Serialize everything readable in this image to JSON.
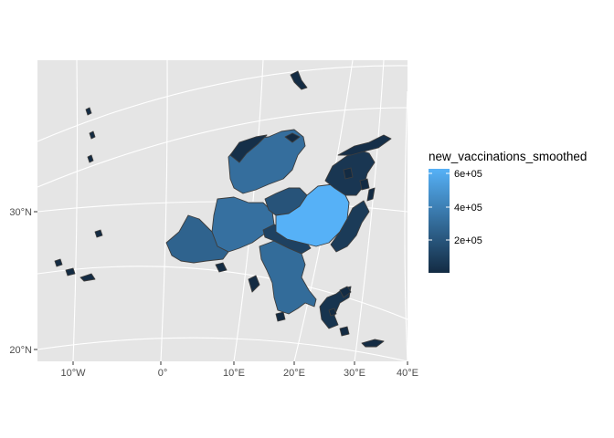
{
  "map": {
    "x_axis_labels": [
      "10°W",
      "0°",
      "10°E",
      "20°E",
      "30°E",
      "40°E"
    ],
    "y_axis_labels": [
      "30°N",
      "20°N"
    ],
    "panel_background": "#e5e5e5",
    "gridline_color": "#ffffff",
    "border_color": "#3d3d3d"
  },
  "legend": {
    "title": "new_vaccinations_smoothed",
    "labels": [
      "6e+05",
      "4e+05",
      "2e+05"
    ],
    "color_low": "#132b43",
    "color_high": "#56b1f7"
  },
  "regions": [
    {
      "id": "large-central-region",
      "value": 620000
    },
    {
      "id": "northern-region",
      "value": 320000
    },
    {
      "id": "western-region",
      "value": 330000
    },
    {
      "id": "southern-peninsula",
      "value": 310000
    },
    {
      "id": "iberian-like-region",
      "value": 270000
    },
    {
      "id": "eastern-small-region",
      "value": 90000
    },
    {
      "id": "northeastern-region",
      "value": 70000
    },
    {
      "id": "small-inner-region-1",
      "value": 200000
    },
    {
      "id": "small-inner-region-2",
      "value": 120000
    },
    {
      "id": "northern-strip",
      "value": 40000
    },
    {
      "id": "southeastern-peninsula",
      "value": 60000
    },
    {
      "id": "islands",
      "value": 20000
    }
  ]
}
